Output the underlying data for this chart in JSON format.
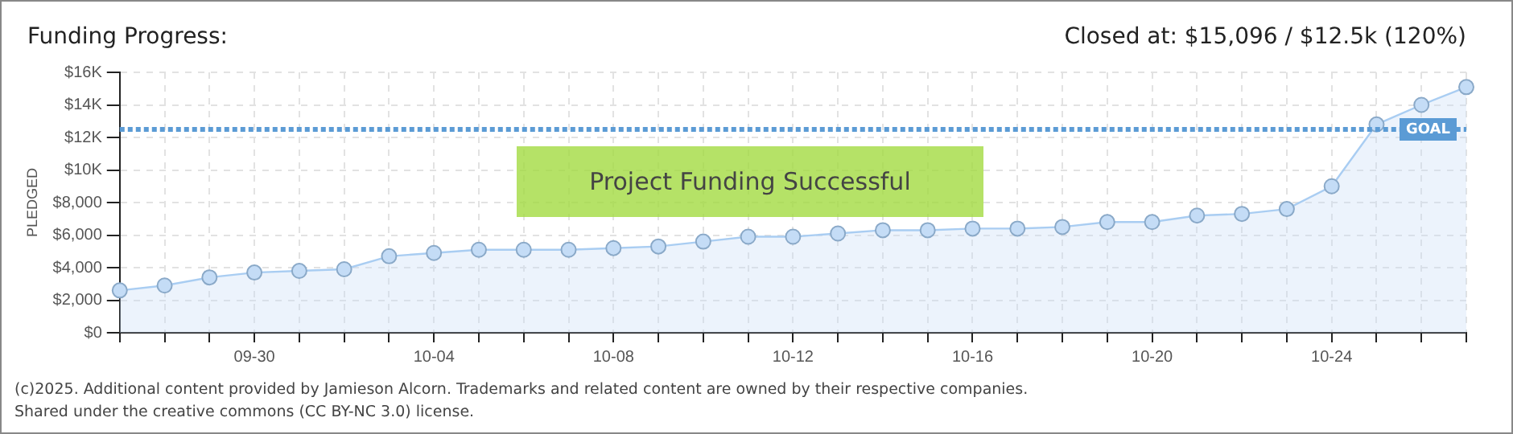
{
  "chart_data": {
    "type": "area",
    "title": "Funding Progress:",
    "subtitle": "Closed at: $15,096 / $12.5k (120%)",
    "ylabel": "PLEDGED",
    "categories": [
      null,
      null,
      null,
      "09-30",
      null,
      null,
      null,
      "10-04",
      null,
      null,
      null,
      "10-08",
      null,
      null,
      null,
      "10-12",
      null,
      null,
      null,
      "10-16",
      null,
      null,
      null,
      "10-20",
      null,
      null,
      null,
      "10-24",
      null,
      null,
      null
    ],
    "series": [
      {
        "color": "#a9cdf2",
        "values": [
          2600,
          2900,
          3400,
          3700,
          3800,
          3900,
          4700,
          4900,
          5100,
          5100,
          5100,
          5200,
          5300,
          5600,
          5900,
          5900,
          6100,
          6300,
          6300,
          6400,
          6400,
          6500,
          6800,
          6800,
          7200,
          7300,
          7600,
          9000,
          12800,
          14000,
          15096
        ]
      }
    ],
    "ylim": [
      0,
      16000
    ],
    "yticks": [
      {
        "value": 0,
        "label": "$0"
      },
      {
        "value": 2000,
        "label": "$2,000"
      },
      {
        "value": 4000,
        "label": "$4,000"
      },
      {
        "value": 6000,
        "label": "$6,000"
      },
      {
        "value": 8000,
        "label": "$8,000"
      },
      {
        "value": 10000,
        "label": "$10K"
      },
      {
        "value": 12000,
        "label": "$12K"
      },
      {
        "value": 14000,
        "label": "$14K"
      },
      {
        "value": 16000,
        "label": "$16K"
      }
    ],
    "ref_lines": [
      {
        "axis": "y",
        "value": 12500,
        "label": "GOAL",
        "color": "#5b9bd5",
        "line_style": "dotted"
      }
    ],
    "grid": true,
    "legend": false,
    "marker": "circle",
    "line_style": "solid",
    "annotations": [
      "Project Funding Successful",
      "(c)2025. Additional content provided by Jamieson Alcorn. Trademarks and related content are owned by their respective companies.",
      "Shared under the creative commons (CC BY-NC 3.0) license."
    ]
  }
}
